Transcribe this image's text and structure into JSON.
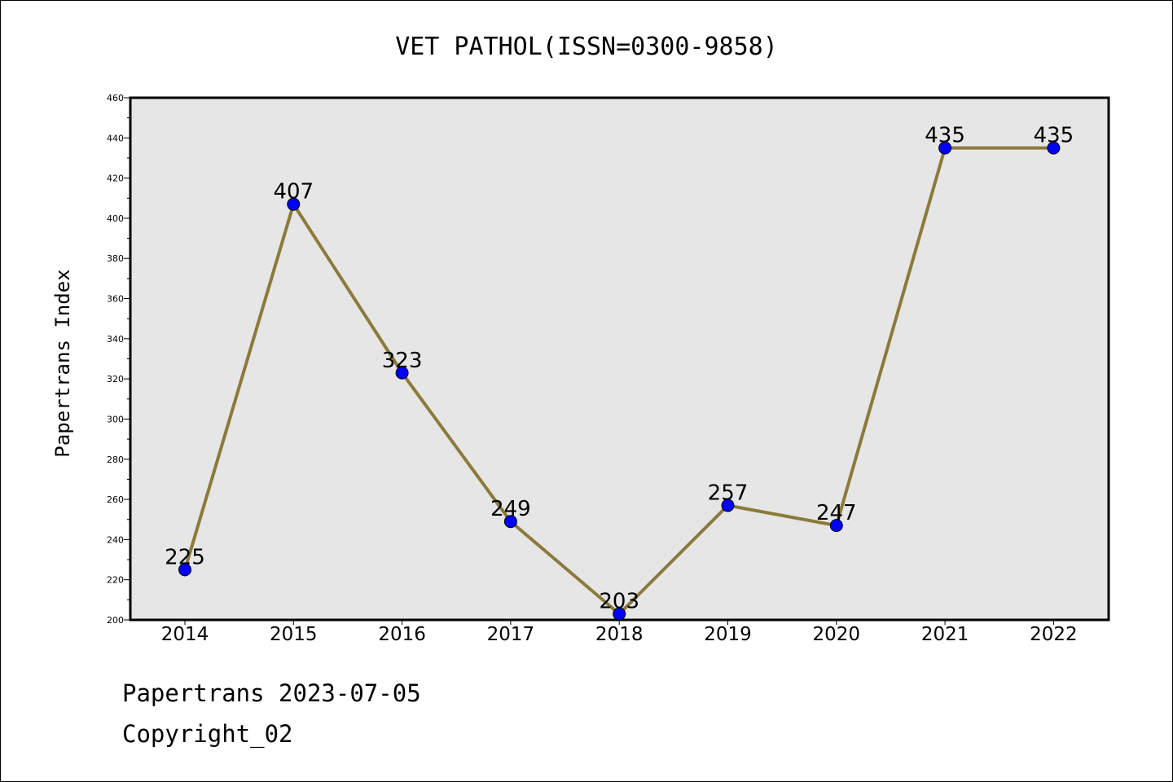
{
  "chart_data": {
    "type": "line",
    "title": "VET PATHOL(ISSN=0300-9858)",
    "ylabel": "Papertrans Index",
    "xlabel": "",
    "categories": [
      "2014",
      "2015",
      "2016",
      "2017",
      "2018",
      "2019",
      "2020",
      "2021",
      "2022"
    ],
    "values": [
      225,
      407,
      323,
      249,
      203,
      257,
      247,
      435,
      435
    ],
    "data_labels": [
      "225",
      "407",
      "323",
      "249",
      "203",
      "257",
      "247",
      "435",
      "435"
    ],
    "ylim": [
      200,
      460
    ],
    "yticks": [
      "200",
      "220",
      "240",
      "260",
      "280",
      "300",
      "320",
      "340",
      "360",
      "380",
      "400",
      "420",
      "440",
      "460"
    ],
    "grid": false,
    "line_color": "#8b7a3a",
    "marker_color": "#0000ff",
    "plot_background": "#e6e6e6"
  },
  "footer": {
    "date_line": "Papertrans 2023-07-05",
    "copyright_line": "Copyright_02"
  }
}
